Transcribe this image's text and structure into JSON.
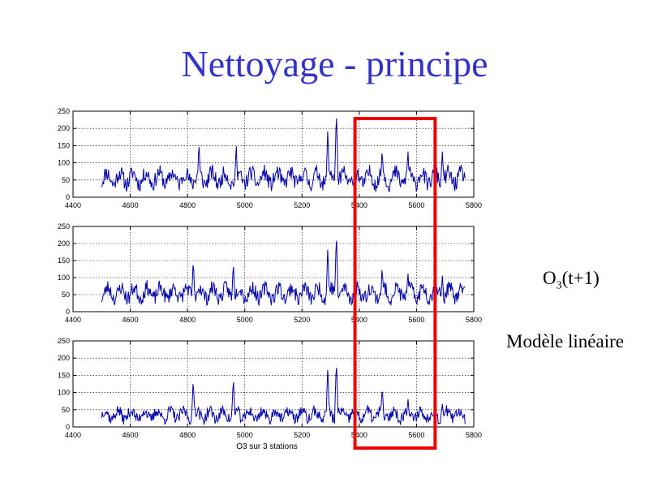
{
  "slide": {
    "title": "Nettoyage - principe",
    "label_o3_prefix": "O",
    "label_o3_sub": "3",
    "label_o3_suffix": "(t+1)",
    "label_model": "Modèle linéaire"
  },
  "colors": {
    "title": "#3333cc",
    "series": "#0000aa",
    "highlight": "#ee0000",
    "grid": "#000000"
  },
  "chart_data": [
    {
      "type": "line",
      "xlim": [
        4400,
        5800
      ],
      "ylim": [
        0,
        250
      ],
      "xticks": [
        4400,
        4600,
        4800,
        5000,
        5200,
        5400,
        5600,
        5800
      ],
      "yticks": [
        0,
        50,
        100,
        150,
        200,
        250
      ],
      "grid": "on",
      "series": [
        {
          "x_start": 4500,
          "x_end": 5770,
          "seed": 11,
          "base": 55,
          "noise": 38,
          "peaks": [
            [
              4840,
              160
            ],
            [
              4970,
              150
            ],
            [
              5320,
              250
            ],
            [
              5290,
              200
            ],
            [
              5480,
              140
            ],
            [
              5570,
              135
            ],
            [
              5690,
              135
            ]
          ]
        }
      ]
    },
    {
      "type": "line",
      "xlim": [
        4400,
        5800
      ],
      "ylim": [
        0,
        250
      ],
      "xticks": [
        4400,
        4600,
        4800,
        5000,
        5200,
        5400,
        5600,
        5800
      ],
      "yticks": [
        0,
        50,
        100,
        150,
        200,
        250
      ],
      "grid": "on",
      "series": [
        {
          "x_start": 4500,
          "x_end": 5770,
          "seed": 23,
          "base": 55,
          "noise": 36,
          "peaks": [
            [
              4820,
              150
            ],
            [
              4960,
              145
            ],
            [
              5320,
              230
            ],
            [
              5290,
              190
            ],
            [
              5480,
              130
            ],
            [
              5570,
              110
            ],
            [
              5690,
              105
            ]
          ]
        }
      ]
    },
    {
      "type": "line",
      "xlim": [
        4400,
        5800
      ],
      "ylim": [
        0,
        250
      ],
      "xticks": [
        4400,
        4600,
        4800,
        5000,
        5200,
        5400,
        5600,
        5800
      ],
      "yticks": [
        0,
        50,
        100,
        150,
        200,
        250
      ],
      "grid": "on",
      "xlabel": "O3 sur 3 stations",
      "series": [
        {
          "x_start": 4500,
          "x_end": 5770,
          "seed": 37,
          "base": 35,
          "noise": 28,
          "peaks": [
            [
              4820,
              135
            ],
            [
              4960,
              140
            ],
            [
              5320,
              190
            ],
            [
              5290,
              175
            ],
            [
              5480,
              115
            ],
            [
              5570,
              80
            ],
            [
              5690,
              70
            ]
          ]
        }
      ]
    }
  ],
  "highlight_range": {
    "x_from": 5385,
    "x_to": 5665
  }
}
